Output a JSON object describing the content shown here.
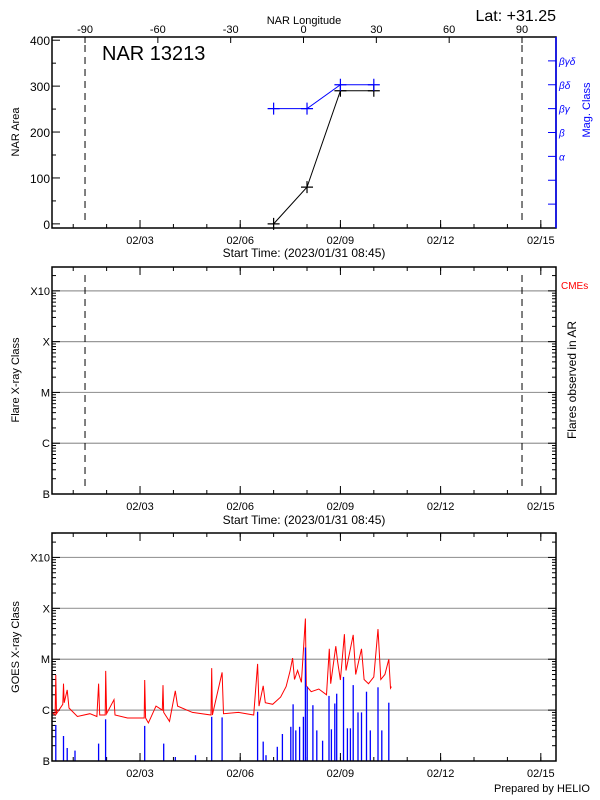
{
  "header": {
    "lat_label": "Lat: +31.25",
    "prepared_by": "Prepared by HELIO"
  },
  "chart_data": [
    {
      "type": "line",
      "title": "NAR 13213",
      "xlabel": "Start Time: (2023/01/31 08:45)",
      "ylabel": "NAR Area",
      "y2label": "Mag. Class",
      "top_xlabel": "NAR Longitude",
      "xlim": [
        "2023-01-31 08:45",
        "2023-02-15 10:55"
      ],
      "x_tick_labels": [
        "02/03",
        "02/06",
        "02/09",
        "02/12",
        "02/15"
      ],
      "x_ticks": [
        "2023-02-03 00:00",
        "2023-02-06 00:00",
        "2023-02-09 00:00",
        "2023-02-12 00:00",
        "2023-02-15 00:00"
      ],
      "top_xlim": [
        -103.6,
        104
      ],
      "top_x_ticks": [
        -90,
        -60,
        -30,
        0,
        30,
        60,
        90
      ],
      "top_x_tick_labels": [
        "-90",
        "-60",
        "-30",
        "0",
        "30",
        "60",
        "90"
      ],
      "ylim": [
        -9,
        407
      ],
      "y_ticks": [
        0,
        100,
        200,
        300,
        400
      ],
      "y_tick_labels": [
        "0",
        "100",
        "200",
        "300",
        "400"
      ],
      "y2_ticks": [
        "",
        "",
        "α",
        "β",
        "βγ",
        "βδ",
        "βγδ"
      ],
      "limb_longitudes": [
        -90,
        90
      ],
      "series": [
        {
          "axis": "left",
          "color": "#000000",
          "x": [
            "2023-02-07 00:00",
            "2023-02-08 00:00",
            "2023-02-09 00:00",
            "2023-02-10 00:00"
          ],
          "values": [
            0,
            80,
            290,
            290
          ]
        },
        {
          "axis": "right",
          "color": "#0000ff",
          "x": [
            "2023-02-07 00:00",
            "2023-02-08 00:00",
            "2023-02-09 00:00",
            "2023-02-10 00:00"
          ],
          "values": [
            "βγ",
            "βγ",
            "βδ",
            "βδ"
          ]
        }
      ]
    },
    {
      "type": "scatter",
      "xlabel": "Start Time: (2023/01/31 08:45)",
      "ylabel": "Flare X-ray Class",
      "y2label": "Flares observed in AR",
      "legend": [
        {
          "label": "CMEs",
          "color": "#ff0000"
        }
      ],
      "xlim": [
        "2023-01-31 08:45",
        "2023-02-15 10:55"
      ],
      "x_tick_labels": [
        "02/03",
        "02/06",
        "02/09",
        "02/12",
        "02/15"
      ],
      "ylim_log10": [
        -7,
        -2.53
      ],
      "y_ticks": [
        1e-07,
        1e-06,
        1e-05,
        0.0001,
        0.001
      ],
      "y_tick_labels": [
        "B",
        "C",
        "M",
        "X",
        "X10"
      ],
      "grid": true,
      "series": []
    },
    {
      "type": "line",
      "ylabel": "GOES X-ray Class",
      "xlim": [
        "2023-01-31 08:45",
        "2023-02-15 10:55"
      ],
      "x_tick_labels": [
        "02/03",
        "02/06",
        "02/09",
        "02/12",
        "02/15"
      ],
      "ylim_log10": [
        -7,
        -2.52
      ],
      "y_ticks": [
        1e-07,
        1e-06,
        1e-05,
        0.0001,
        0.001
      ],
      "y_tick_labels": [
        "B",
        "C",
        "M",
        "X",
        "X10"
      ],
      "grid": true,
      "series": [
        {
          "color": "#ff0000",
          "style": "line",
          "points": [
            [
              "2023-01-31 09:00",
              9e-07
            ],
            [
              "2023-01-31 11:00",
              8e-07
            ],
            [
              "2023-01-31 11:30",
              4.9e-06
            ],
            [
              "2023-01-31 12:00",
              8.5e-07
            ],
            [
              "2023-01-31 16:30",
              1.3e-06
            ],
            [
              "2023-01-31 17:00",
              3.3e-06
            ],
            [
              "2023-01-31 17:30",
              1.4e-06
            ],
            [
              "2023-01-31 19:40",
              2.5e-06
            ],
            [
              "2023-01-31 21:00",
              1.1e-06
            ],
            [
              "2023-02-01 03:00",
              7.5e-07
            ],
            [
              "2023-02-01 12:00",
              8.5e-07
            ],
            [
              "2023-02-01 17:00",
              7.5e-07
            ],
            [
              "2023-02-01 18:15",
              3.3e-06
            ],
            [
              "2023-02-01 19:00",
              8e-07
            ],
            [
              "2023-02-01 23:00",
              8e-07
            ],
            [
              "2023-02-01 23:20",
              5.9e-06
            ],
            [
              "2023-02-02 00:00",
              8.5e-07
            ],
            [
              "2023-02-02 05:20",
              1.6e-06
            ],
            [
              "2023-02-02 06:00",
              8e-07
            ],
            [
              "2023-02-02 15:00",
              7e-07
            ],
            [
              "2023-02-03 03:00",
              7e-07
            ],
            [
              "2023-02-03 03:20",
              3.9e-06
            ],
            [
              "2023-02-03 04:00",
              7e-07
            ],
            [
              "2023-02-03 06:00",
              5.6e-07
            ],
            [
              "2023-02-03 11:30",
              1.2e-06
            ],
            [
              "2023-02-03 16:00",
              1e-06
            ],
            [
              "2023-02-03 16:30",
              3.1e-06
            ],
            [
              "2023-02-03 17:00",
              9e-07
            ],
            [
              "2023-02-03 21:10",
              6e-07
            ],
            [
              "2023-02-04 01:20",
              2.4e-06
            ],
            [
              "2023-02-04 03:00",
              1.2e-06
            ],
            [
              "2023-02-04 13:40",
              9e-07
            ],
            [
              "2023-02-05 03:00",
              8e-07
            ],
            [
              "2023-02-05 03:30",
              6.7e-06
            ],
            [
              "2023-02-05 04:00",
              8e-07
            ],
            [
              "2023-02-05 11:00",
              5.5e-06
            ],
            [
              "2023-02-05 12:00",
              8.5e-07
            ],
            [
              "2023-02-05 22:40",
              9e-07
            ],
            [
              "2023-02-06 09:40",
              8e-07
            ],
            [
              "2023-02-06 12:30",
              8.1e-06
            ],
            [
              "2023-02-06 13:30",
              1.2e-06
            ],
            [
              "2023-02-06 16:30",
              3e-06
            ],
            [
              "2023-02-06 18:00",
              1.4e-06
            ],
            [
              "2023-02-06 23:20",
              1.3e-06
            ],
            [
              "2023-02-07 05:00",
              1.8e-06
            ],
            [
              "2023-02-07 09:00",
              2.9e-06
            ],
            [
              "2023-02-07 11:45",
              5.8e-06
            ],
            [
              "2023-02-07 13:40",
              1.05e-05
            ],
            [
              "2023-02-07 15:00",
              4e-06
            ],
            [
              "2023-02-07 17:15",
              6e-06
            ],
            [
              "2023-02-07 20:00",
              3.5e-06
            ],
            [
              "2023-02-07 22:50",
              6.3e-05
            ],
            [
              "2023-02-07 23:30",
              3e-06
            ],
            [
              "2023-02-08 03:00",
              2.3e-06
            ],
            [
              "2023-02-08 08:30",
              2.6e-06
            ],
            [
              "2023-02-08 14:00",
              2e-06
            ],
            [
              "2023-02-08 16:00",
              1.6e-05
            ],
            [
              "2023-02-08 17:00",
              3.3e-06
            ],
            [
              "2023-02-08 20:40",
              1.8e-05
            ],
            [
              "2023-02-08 22:00",
              9e-06
            ],
            [
              "2023-02-09 00:00",
              3.9e-06
            ],
            [
              "2023-02-09 02:50",
              3.1e-05
            ],
            [
              "2023-02-09 04:00",
              6e-06
            ],
            [
              "2023-02-09 09:10",
              3e-05
            ],
            [
              "2023-02-09 11:00",
              5e-06
            ],
            [
              "2023-02-09 15:10",
              1.6e-05
            ],
            [
              "2023-02-09 17:00",
              4e-06
            ],
            [
              "2023-02-09 20:10",
              3.3e-06
            ],
            [
              "2023-02-10 00:00",
              4.5e-06
            ],
            [
              "2023-02-10 03:00",
              3.9e-05
            ],
            [
              "2023-02-10 05:00",
              4e-06
            ],
            [
              "2023-02-10 08:00",
              5e-06
            ],
            [
              "2023-02-10 10:45",
              1e-05
            ],
            [
              "2023-02-10 12:00",
              2.7e-06
            ],
            [
              "2023-02-10 12:40",
              2.9e-06
            ]
          ]
        },
        {
          "color": "#0000ff",
          "style": "spikes",
          "points": [
            [
              "2023-01-31 11:30",
              5.1e-07
            ],
            [
              "2023-01-31 17:00",
              3.1e-07
            ],
            [
              "2023-01-31 19:40",
              1.8e-07
            ],
            [
              "2023-02-01 01:15",
              1.6e-07
            ],
            [
              "2023-02-01 18:15",
              2.2e-07
            ],
            [
              "2023-02-01 23:15",
              6.6e-07
            ],
            [
              "2023-02-03 03:20",
              4.9e-07
            ],
            [
              "2023-02-03 17:00",
              2.2e-07
            ],
            [
              "2023-02-04 01:20",
              1.2e-07
            ],
            [
              "2023-02-04 15:50",
              1.3e-07
            ],
            [
              "2023-02-05 03:30",
              7.4e-07
            ],
            [
              "2023-02-05 11:00",
              7.2e-07
            ],
            [
              "2023-02-06 12:30",
              9.3e-07
            ],
            [
              "2023-02-06 16:30",
              2.4e-07
            ],
            [
              "2023-02-06 18:30",
              1.3e-07
            ],
            [
              "2023-02-07 02:40",
              1.9e-07
            ],
            [
              "2023-02-07 06:20",
              3.4e-07
            ],
            [
              "2023-02-07 12:20",
              4.7e-07
            ],
            [
              "2023-02-07 14:00",
              1.3e-06
            ],
            [
              "2023-02-07 15:55",
              4e-07
            ],
            [
              "2023-02-07 18:40",
              4.7e-07
            ],
            [
              "2023-02-07 21:25",
              7.4e-07
            ],
            [
              "2023-02-07 22:50",
              1.7e-05
            ],
            [
              "2023-02-08 00:10",
              2.9e-06
            ],
            [
              "2023-02-08 04:15",
              1.25e-06
            ],
            [
              "2023-02-08 07:00",
              4e-07
            ],
            [
              "2023-02-08 11:10",
              2.5e-07
            ],
            [
              "2023-02-08 15:50",
              1.9e-06
            ],
            [
              "2023-02-08 17:30",
              4.2e-07
            ],
            [
              "2023-02-08 20:00",
              1.35e-06
            ],
            [
              "2023-02-08 21:20",
              2.1e-06
            ],
            [
              "2023-02-09 02:15",
              4.5e-06
            ],
            [
              "2023-02-09 05:00",
              4.4e-07
            ],
            [
              "2023-02-09 07:10",
              4.4e-07
            ],
            [
              "2023-02-09 09:10",
              3.1e-06
            ],
            [
              "2023-02-09 12:40",
              9e-07
            ],
            [
              "2023-02-09 15:10",
              9e-07
            ],
            [
              "2023-02-09 18:45",
              2.3e-06
            ],
            [
              "2023-02-09 21:30",
              4e-07
            ],
            [
              "2023-02-10 03:00",
              2.8e-06
            ],
            [
              "2023-02-10 05:45",
              4e-07
            ],
            [
              "2023-02-10 10:45",
              1.4e-06
            ]
          ]
        }
      ]
    }
  ]
}
